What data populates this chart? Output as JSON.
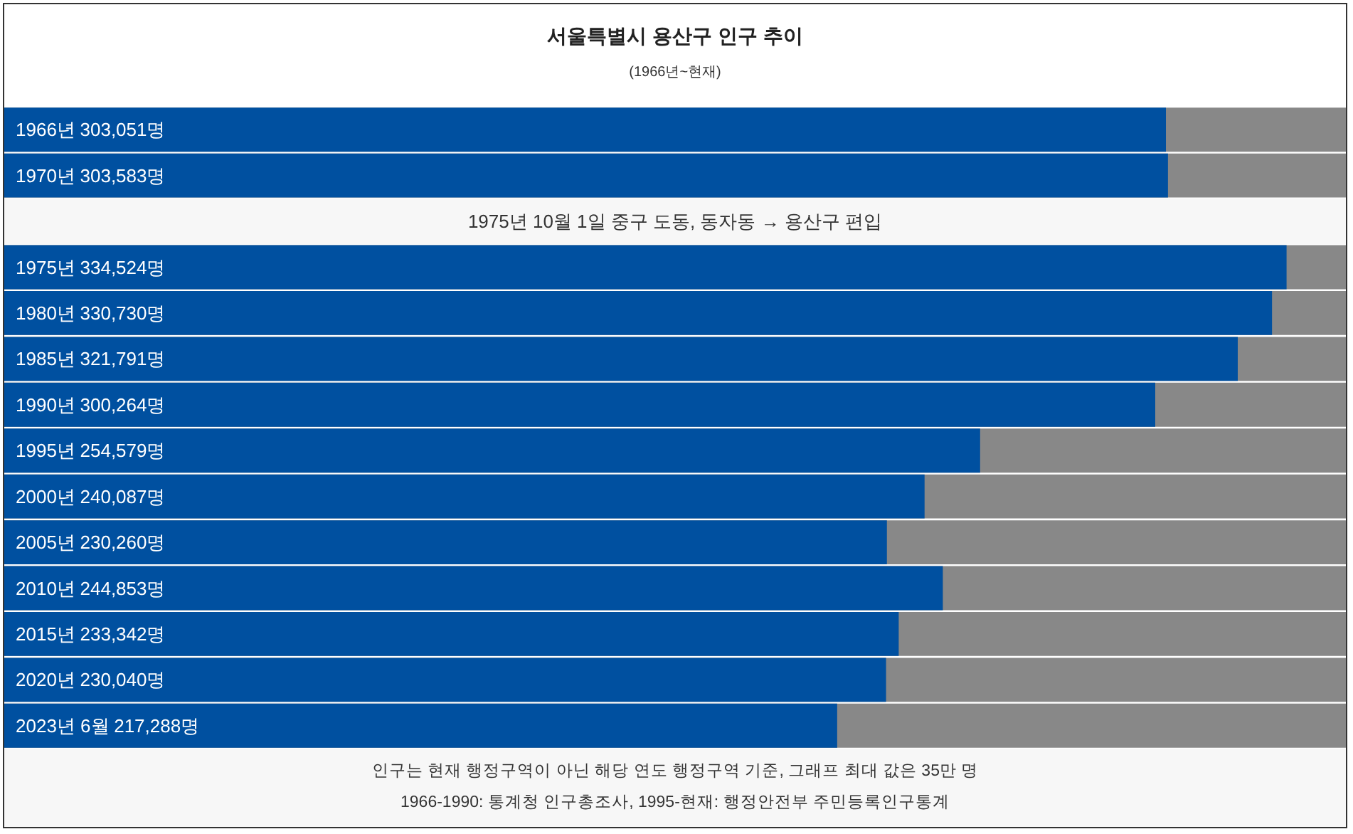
{
  "chart_data": {
    "type": "bar",
    "orientation": "horizontal",
    "title": "서울특별시 용산구 인구 추이",
    "subtitle": "(1966년~현재)",
    "categories": [
      "1966년",
      "1970년",
      null,
      "1975년",
      "1980년",
      "1985년",
      "1990년",
      "1995년",
      "2000년",
      "2005년",
      "2010년",
      "2015년",
      "2020년",
      "2023년 6월"
    ],
    "values": [
      303051,
      303583,
      null,
      334524,
      330730,
      321791,
      300264,
      254579,
      240087,
      230260,
      244853,
      233342,
      230040,
      217288
    ],
    "value_labels": [
      "303,051명",
      "303,583명",
      null,
      "334,524명",
      "330,730명",
      "321,791명",
      "300,264명",
      "254,579명",
      "240,087명",
      "230,260명",
      "244,853명",
      "233,342명",
      "230,040명",
      "217,288명"
    ],
    "color": "#0050a0",
    "xlim": [
      0,
      350000
    ],
    "tick_labels": false,
    "annotations": [
      "1975년 10월 1일 중구 도동, 동자동 → 용산구 편입",
      "인구는 현재 행정구역이 아닌 해당 연도 행정구역 기준, 그래프 최대 값은 35만 명",
      "1966-1990: 통계청 인구총조사, 1995-현재: 행정안전부 주민등록인구통계"
    ]
  }
}
